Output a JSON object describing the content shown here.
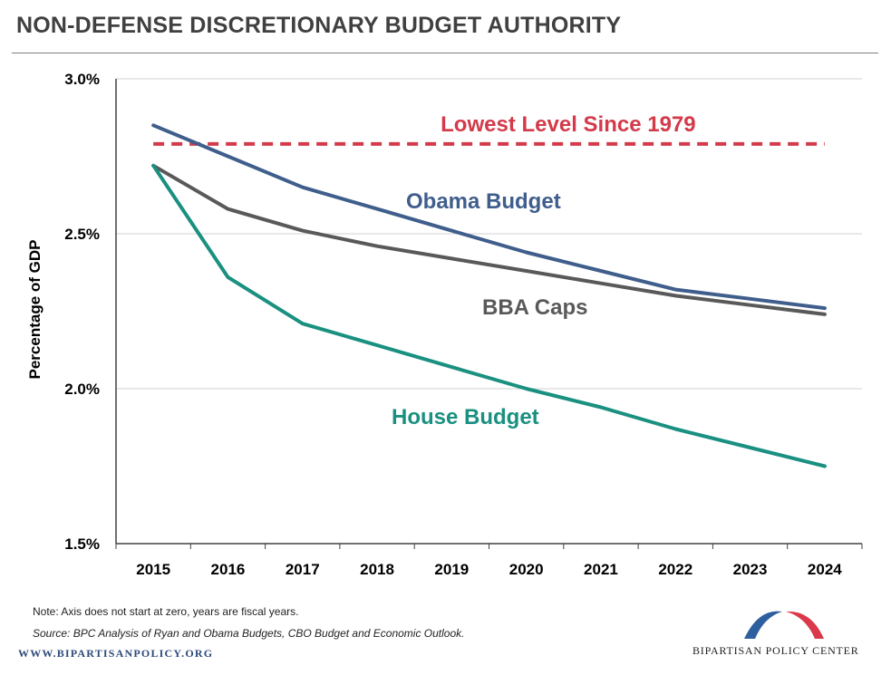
{
  "title": "NON-DEFENSE DISCRETIONARY BUDGET AUTHORITY",
  "note": "Note: Axis does not start at zero, years are fiscal years.",
  "source": "Source: BPC Analysis of Ryan and Obama Budgets, CBO Budget and Economic Outlook.",
  "footer": {
    "url": "WWW.BIPARTISANPOLICY.ORG",
    "logo_text": "BIPARTISAN POLICY CENTER",
    "logo_colors": {
      "blue": "#2e5f9e",
      "red": "#d9394a"
    }
  },
  "chart_data": {
    "type": "line",
    "title": "NON-DEFENSE DISCRETIONARY BUDGET AUTHORITY",
    "ylabel": "Percentage of GDP",
    "xlabel": "",
    "ylim": [
      1.5,
      3.0
    ],
    "yticks": [
      1.5,
      2.0,
      2.5,
      3.0
    ],
    "ytick_labels": [
      "1.5%",
      "2.0%",
      "2.5%",
      "3.0%"
    ],
    "categories": [
      "2015",
      "2016",
      "2017",
      "2018",
      "2019",
      "2020",
      "2021",
      "2022",
      "2023",
      "2024"
    ],
    "grid": "horizontal",
    "series": [
      {
        "name": "Obama Budget",
        "color": "#3f5e8c",
        "values": [
          2.85,
          2.75,
          2.65,
          2.58,
          2.51,
          2.44,
          2.38,
          2.32,
          2.29,
          2.26
        ]
      },
      {
        "name": "BBA Caps",
        "color": "#595959",
        "values": [
          2.72,
          2.58,
          2.51,
          2.46,
          2.42,
          2.38,
          2.34,
          2.3,
          2.27,
          2.24
        ]
      },
      {
        "name": "House Budget",
        "color": "#1a9080",
        "values": [
          2.72,
          2.36,
          2.21,
          2.14,
          2.07,
          2.0,
          1.94,
          1.87,
          1.81,
          1.75
        ]
      }
    ],
    "reference_line": {
      "label": "Lowest Level Since 1979",
      "value": 2.79,
      "color": "#d33a4a",
      "style": "dashed"
    }
  }
}
